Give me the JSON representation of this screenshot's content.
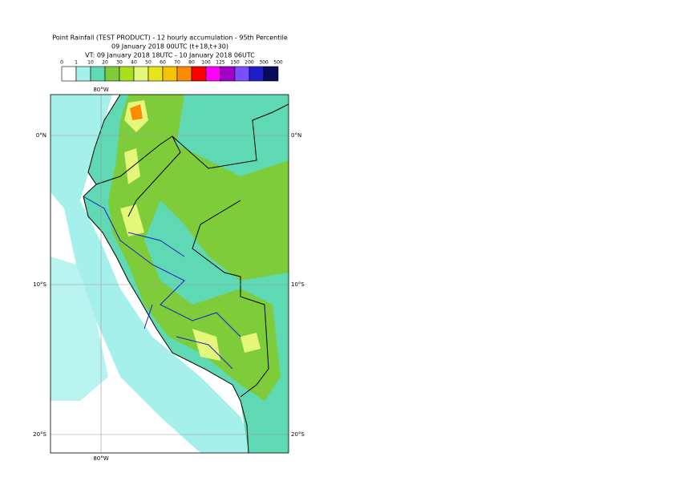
{
  "title": [
    "Point Rainfall (TEST PRODUCT) - 12 hourly accumulation - 95th Percentile",
    "09 January 2018 00UTC (t+18,t+30)",
    "VT: 09 January 2018 18UTC - 10 January 2018 06UTC"
  ],
  "legend": {
    "thresholds": [
      0,
      1,
      10,
      20,
      30,
      40,
      50,
      60,
      70,
      80,
      100,
      125,
      150,
      200,
      300,
      500
    ],
    "colors": [
      "#ffffff",
      "#a6f0ec",
      "#5fd9b4",
      "#7fcc3a",
      "#a8e01e",
      "#e4f77a",
      "#e6e61a",
      "#f5c400",
      "#ff8c00",
      "#ff0000",
      "#ff00ff",
      "#a000c8",
      "#7850ff",
      "#1e1ec8",
      "#0a0a5a"
    ]
  },
  "axes": {
    "lon_labels": [
      "80°W"
    ],
    "lat_labels": [
      "0°N",
      "10°S",
      "20°S"
    ]
  }
}
